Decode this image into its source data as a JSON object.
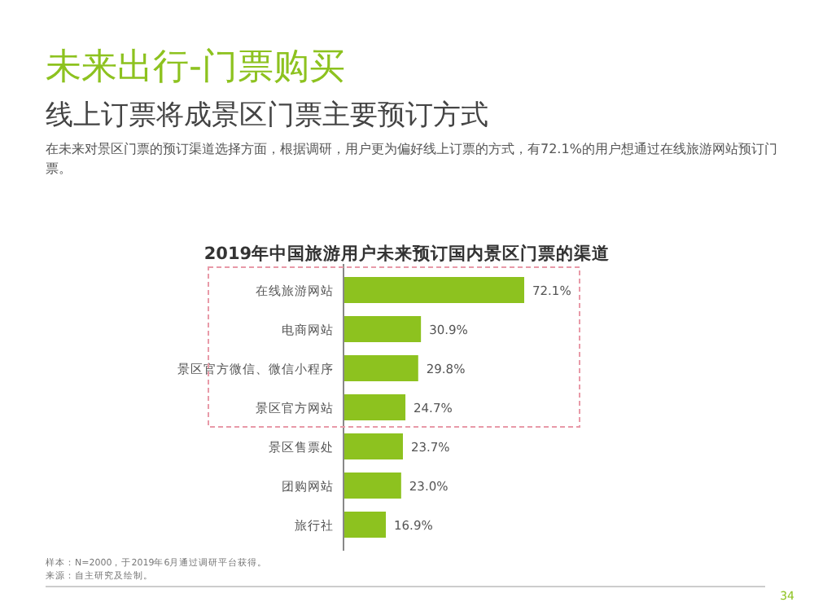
{
  "chart_data": {
    "type": "bar",
    "orientation": "horizontal",
    "title": "2019年中国旅游用户未来预订国内景区门票的渠道",
    "categories": [
      "在线旅游网站",
      "电商网站",
      "景区官方微信、微信小程序",
      "景区官方网站",
      "景区售票处",
      "团购网站",
      "旅行社"
    ],
    "values": [
      72.1,
      30.9,
      29.8,
      24.7,
      23.7,
      23.0,
      16.9
    ],
    "value_labels": [
      "72.1%",
      "30.9%",
      "29.8%",
      "24.7%",
      "23.7%",
      "23.0%",
      "16.9%"
    ],
    "color": "#8dc21f",
    "annotations": [
      "未来出行-门票购买",
      "线上订票将成景区门票主要预订方式",
      "在未来对景区门票的预订渠道选择方面，根据调研，用户更为偏好线上订票的方式，有72.1%的用户想通过在线旅游网站预订门票。",
      "样本：N=2000，于2019年6月通过调研平台获得。",
      "来源：自主研究及绘制。",
      "34"
    ]
  }
}
